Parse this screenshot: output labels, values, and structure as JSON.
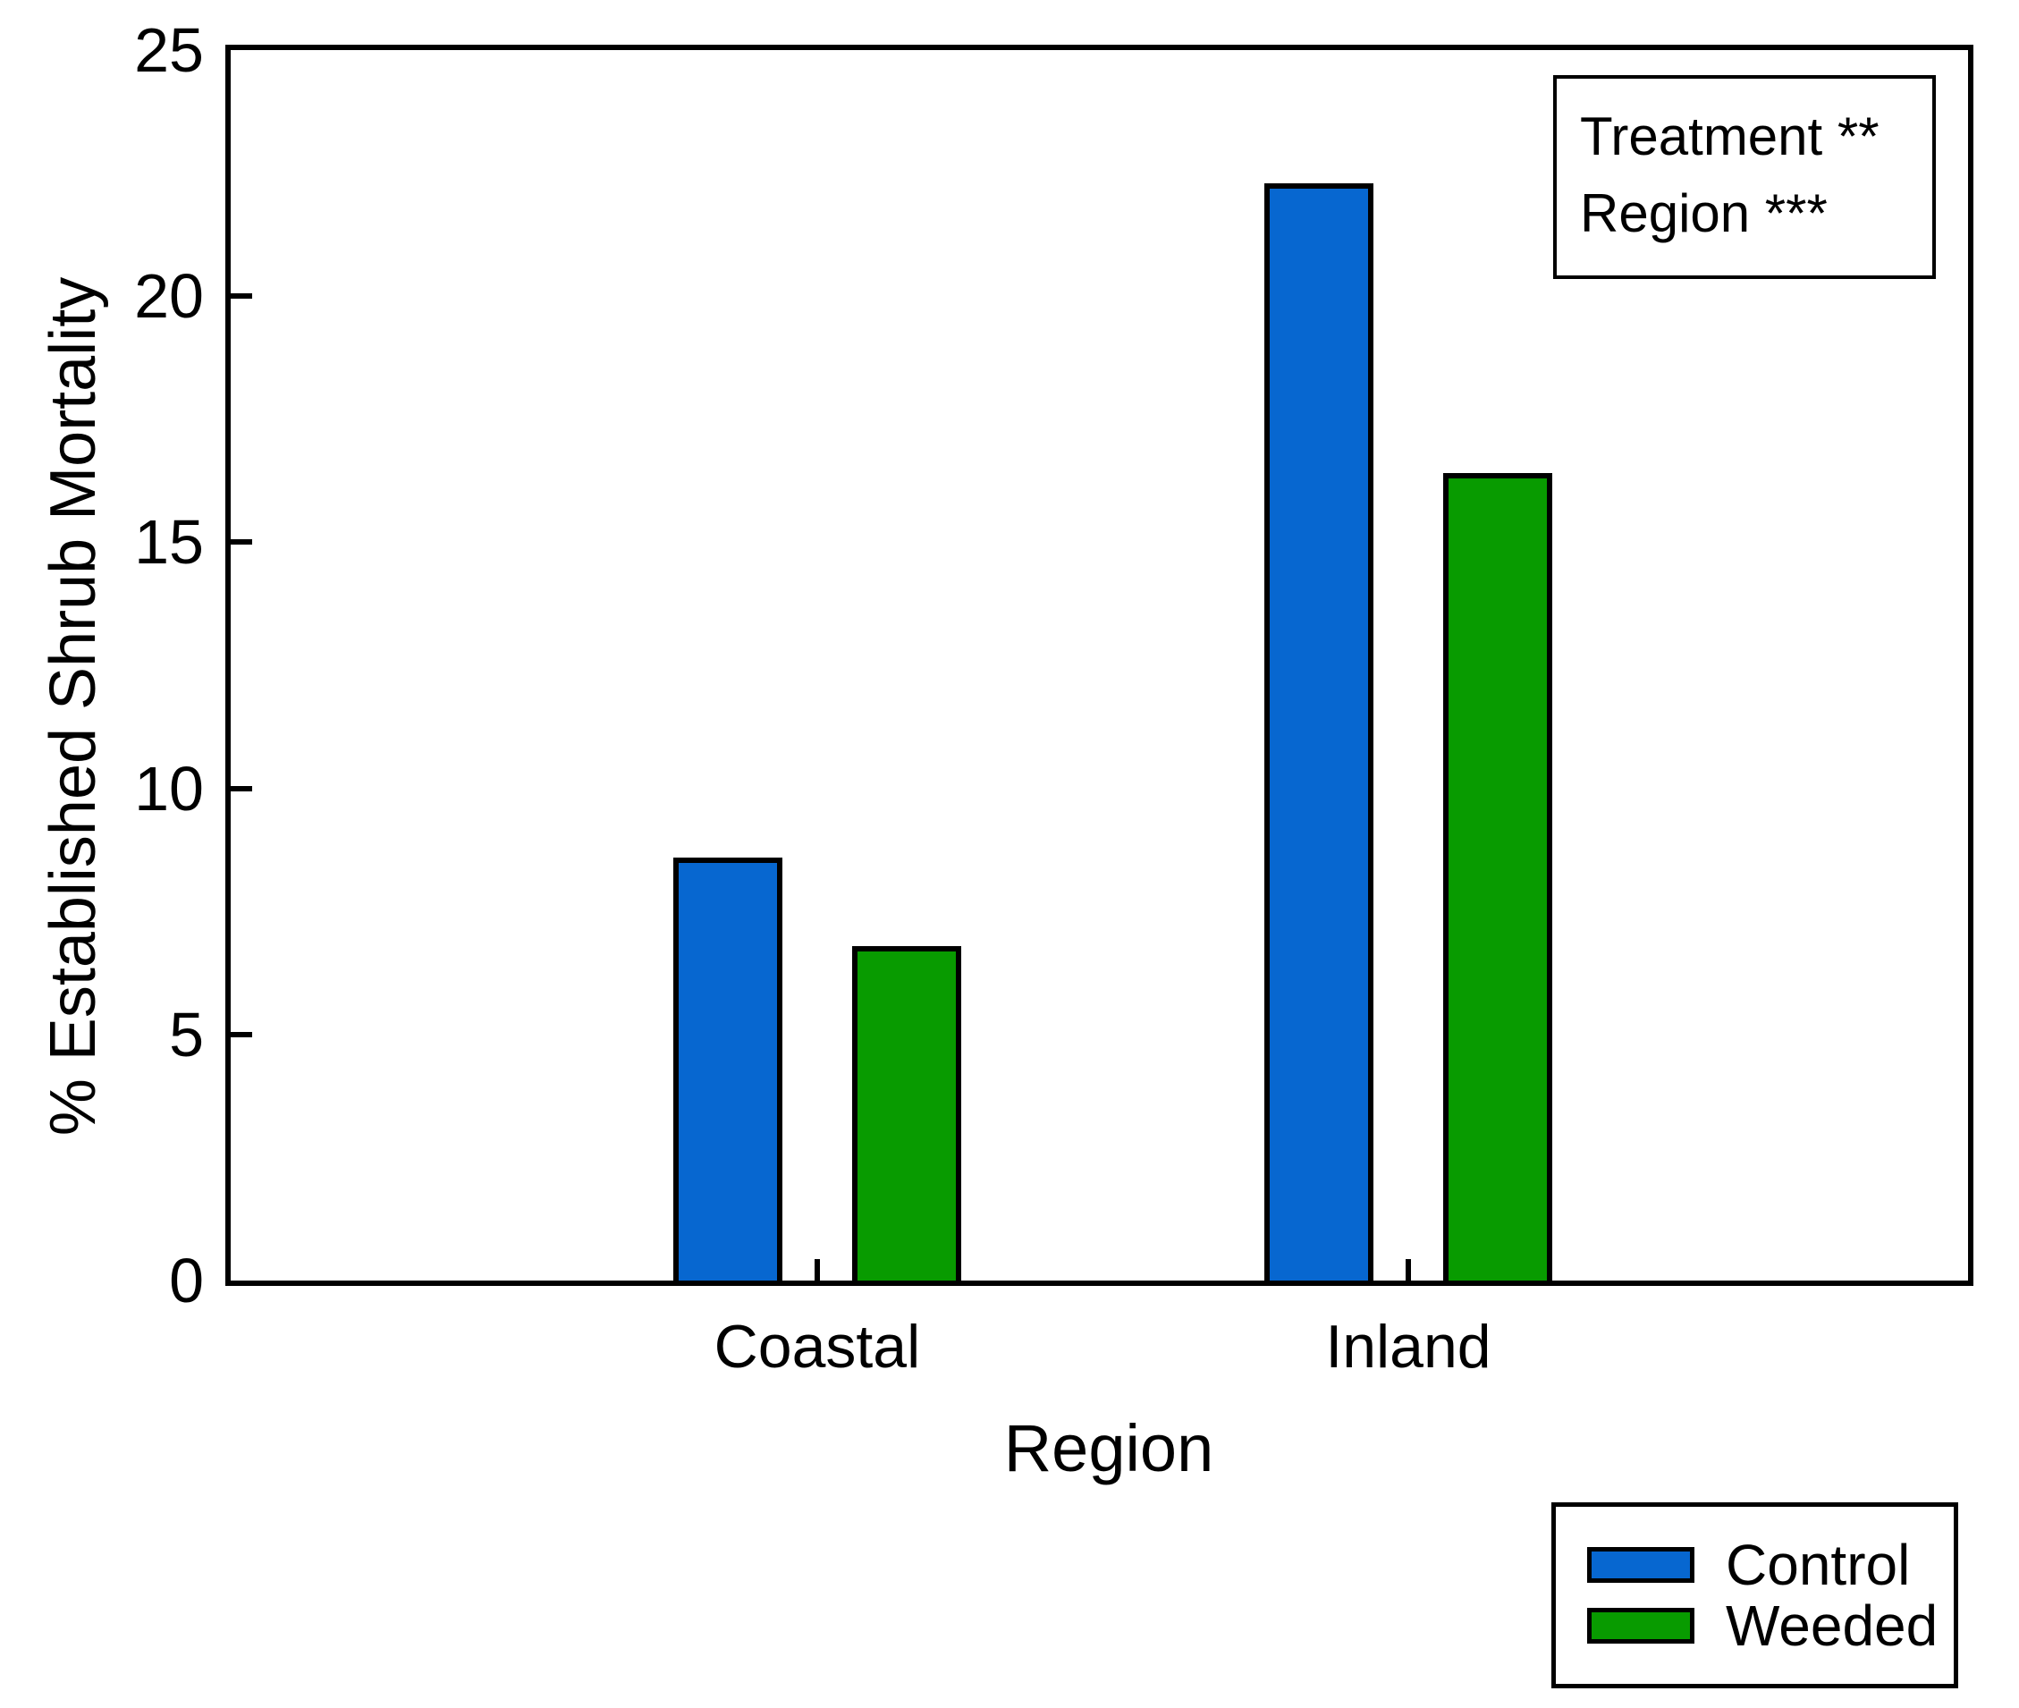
{
  "figure": {
    "background_color": "#ffffff",
    "axis_color": "#000000",
    "text_color": "#000000"
  },
  "chart_data": {
    "type": "bar",
    "categories": [
      "Coastal",
      "Inland"
    ],
    "series": [
      {
        "name": "Control",
        "color": "#0767D0",
        "values": [
          8.6,
          22.3
        ]
      },
      {
        "name": "Weeded",
        "color": "#089B00",
        "values": [
          6.8,
          16.4
        ]
      }
    ],
    "title": "",
    "xlabel": "Region",
    "ylabel": "% Established Shrub Mortality",
    "ylim": [
      0,
      25
    ],
    "yticks": [
      0,
      5,
      10,
      15,
      20,
      25
    ],
    "grid": false,
    "bar_outline_color": "#000000",
    "legend": {
      "position": "outside-bottom-right",
      "entries": [
        "Control",
        "Weeded"
      ]
    },
    "annotation_lines": [
      "Treatment **",
      "Region ***"
    ]
  }
}
